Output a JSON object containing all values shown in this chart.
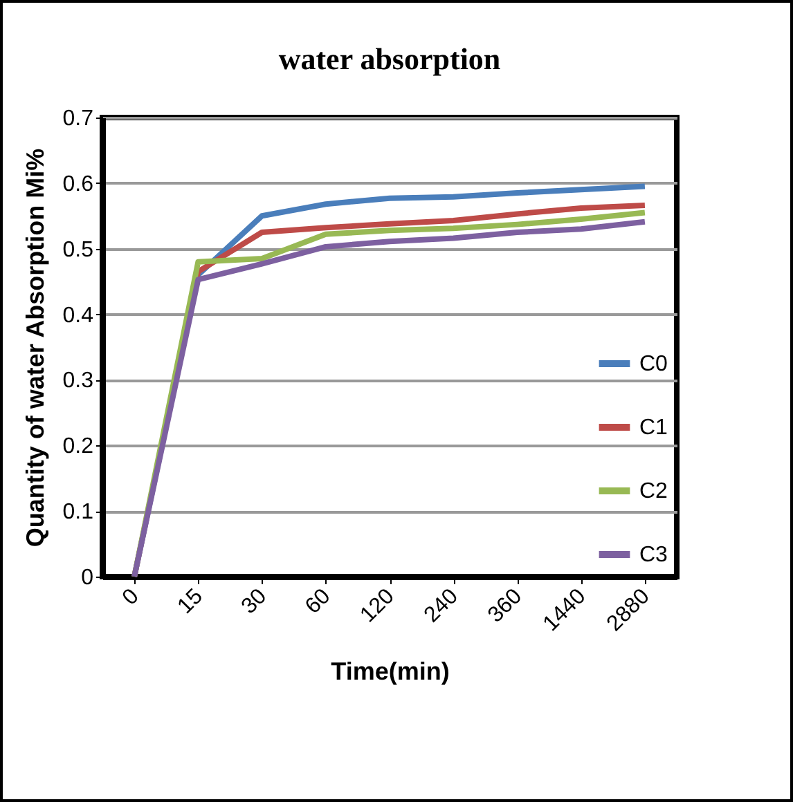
{
  "chart_data": {
    "type": "line",
    "title": "water absorption",
    "xlabel": "Time(min)",
    "ylabel": "Quantity of water Absorption Mi%",
    "categories": [
      "0",
      "15",
      "30",
      "60",
      "120",
      "240",
      "360",
      "1440",
      "2880"
    ],
    "series": [
      {
        "name": "C0",
        "color": "#4a7ebb",
        "values": [
          0,
          0.46,
          0.55,
          0.568,
          0.577,
          0.579,
          0.585,
          0.59,
          0.595
        ]
      },
      {
        "name": "C1",
        "color": "#be4b48",
        "values": [
          0,
          0.465,
          0.525,
          0.532,
          0.538,
          0.543,
          0.553,
          0.562,
          0.566
        ]
      },
      {
        "name": "C2",
        "color": "#98b954",
        "values": [
          0,
          0.48,
          0.485,
          0.522,
          0.528,
          0.531,
          0.537,
          0.545,
          0.555
        ]
      },
      {
        "name": "C3",
        "color": "#7d60a0",
        "values": [
          0,
          0.453,
          0.477,
          0.503,
          0.511,
          0.516,
          0.525,
          0.53,
          0.541
        ]
      }
    ],
    "ylim": [
      0,
      0.7
    ],
    "yticks": [
      0,
      0.1,
      0.2,
      0.3,
      0.4,
      0.5,
      0.6,
      0.7
    ],
    "grid": "y",
    "legend": "bottom right",
    "marker": "none",
    "line_style": "solid"
  }
}
